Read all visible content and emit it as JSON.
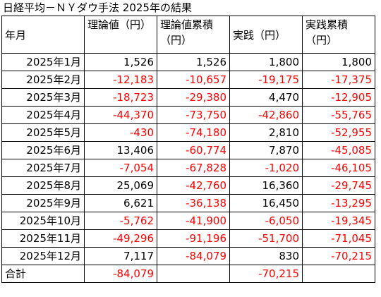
{
  "title": "日経平均－ＮＹダウ手法 2025年の結果",
  "headers": [
    "年月",
    "理論値（円）",
    "理論値累積（円）",
    "実践（円）",
    "実践累積（円）"
  ],
  "rows": [
    {
      "label": "2025年1月",
      "theory": "1,526",
      "theory_cum": "1,526",
      "actual": "1,800",
      "actual_cum": "1,800"
    },
    {
      "label": "2025年2月",
      "theory": "-12,183",
      "theory_cum": "-10,657",
      "actual": "-19,175",
      "actual_cum": "-17,375"
    },
    {
      "label": "2025年3月",
      "theory": "-18,723",
      "theory_cum": "-29,380",
      "actual": "4,470",
      "actual_cum": "-12,905"
    },
    {
      "label": "2025年4月",
      "theory": "-44,370",
      "theory_cum": "-73,750",
      "actual": "-42,860",
      "actual_cum": "-55,765"
    },
    {
      "label": "2025年5月",
      "theory": "-430",
      "theory_cum": "-74,180",
      "actual": "2,810",
      "actual_cum": "-52,955"
    },
    {
      "label": "2025年6月",
      "theory": "13,406",
      "theory_cum": "-60,774",
      "actual": "7,870",
      "actual_cum": "-45,085"
    },
    {
      "label": "2025年7月",
      "theory": "-7,054",
      "theory_cum": "-67,828",
      "actual": "-1,020",
      "actual_cum": "-46,105"
    },
    {
      "label": "2025年8月",
      "theory": "25,069",
      "theory_cum": "-42,760",
      "actual": "16,360",
      "actual_cum": "-29,745"
    },
    {
      "label": "2025年9月",
      "theory": "6,621",
      "theory_cum": "-36,138",
      "actual": "16,450",
      "actual_cum": "-13,295"
    },
    {
      "label": "2025年10月",
      "theory": "-5,762",
      "theory_cum": "-41,900",
      "actual": "-6,050",
      "actual_cum": "-19,345"
    },
    {
      "label": "2025年11月",
      "theory": "-49,296",
      "theory_cum": "-91,196",
      "actual": "-51,700",
      "actual_cum": "-71,045"
    },
    {
      "label": "2025年12月",
      "theory": "7,117",
      "theory_cum": "-84,079",
      "actual": "830",
      "actual_cum": "-70,215"
    }
  ],
  "total": {
    "label": "合計",
    "theory": "-84,079",
    "theory_cum": "",
    "actual": "-70,215",
    "actual_cum": ""
  },
  "colors": {
    "negative": "#ff0000",
    "positive": "#000000",
    "border": "#000000"
  }
}
